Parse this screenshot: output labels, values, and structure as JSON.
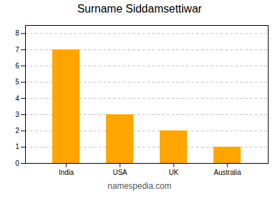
{
  "chart_data": {
    "type": "bar",
    "title": "Surname Siddamsettiwar",
    "categories": [
      "India",
      "USA",
      "UK",
      "Australia"
    ],
    "values": [
      7,
      3,
      2,
      1
    ],
    "color": "#FFA500",
    "ylim": [
      0,
      8.5
    ],
    "yticks": [
      0,
      1,
      2,
      3,
      4,
      5,
      6,
      7,
      8
    ],
    "grid": true,
    "caption": "namespedia.com"
  }
}
